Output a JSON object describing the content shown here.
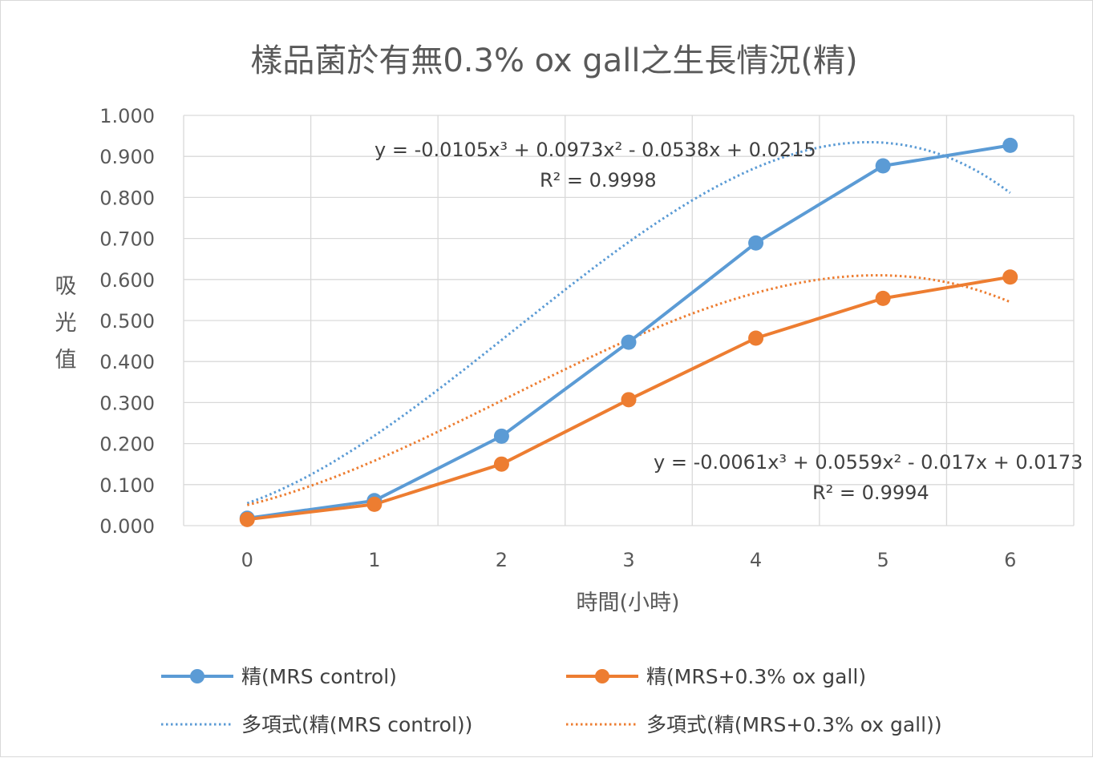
{
  "chart_data": {
    "type": "line",
    "title": "樣品菌於有無0.3% ox gall之生長情況(精)",
    "xlabel": "時間(小時)",
    "ylabel": "吸光值",
    "x": [
      0,
      1,
      2,
      3,
      4,
      5,
      6
    ],
    "xlim": [
      0,
      6
    ],
    "ylim": [
      0,
      1
    ],
    "y_ticks": [
      "0.000",
      "0.100",
      "0.200",
      "0.300",
      "0.400",
      "0.500",
      "0.600",
      "0.700",
      "0.800",
      "0.900",
      "1.000"
    ],
    "grid": true,
    "legend_position": "bottom",
    "series": [
      {
        "name": "精(MRS control)",
        "values": [
          0.018,
          0.061,
          0.218,
          0.447,
          0.689,
          0.877,
          0.927
        ],
        "color": "#5b9bd5",
        "marker": "circle"
      },
      {
        "name": "精(MRS+0.3% ox gall)",
        "values": [
          0.015,
          0.052,
          0.15,
          0.307,
          0.457,
          0.554,
          0.606
        ],
        "color": "#ed7d31",
        "marker": "circle"
      }
    ],
    "trendlines": [
      {
        "name": "多項式(精(MRS control))",
        "series": 0,
        "type": "poly3",
        "coefficients": [
          -0.0105,
          0.0973,
          -0.0538,
          0.0215
        ],
        "equation": "y = -0.0105x³ + 0.0973x² - 0.0538x + 0.0215",
        "r2": "R² = 0.9998",
        "color": "#5b9bd5",
        "style": "dotted"
      },
      {
        "name": "多項式(精(MRS+0.3% ox gall))",
        "series": 1,
        "type": "poly3",
        "coefficients": [
          -0.0061,
          0.0559,
          -0.017,
          0.0173
        ],
        "equation": "y = -0.0061x³ + 0.0559x² - 0.017x + 0.0173",
        "r2": "R² = 0.9994",
        "color": "#ed7d31",
        "style": "dotted"
      }
    ]
  }
}
